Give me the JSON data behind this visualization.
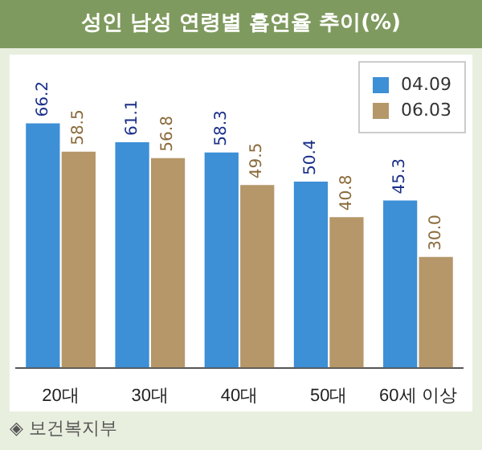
{
  "chart_data": {
    "type": "bar",
    "title": "성인 남성 연령별 흡연율 추이(%)",
    "categories": [
      "20대",
      "30대",
      "40대",
      "50대",
      "60세 이상"
    ],
    "series": [
      {
        "name": "04.09",
        "color": "#3d8fd6",
        "values": [
          66.2,
          61.1,
          58.3,
          50.4,
          45.3
        ],
        "value_labels": [
          "66.2",
          "61.1",
          "58.3",
          "50.4",
          "45.3"
        ]
      },
      {
        "name": "06.03",
        "color": "#b5976a",
        "values": [
          58.5,
          56.8,
          49.5,
          40.8,
          30.0
        ],
        "value_labels": [
          "58.5",
          "56.8",
          "49.5",
          "40.8",
          "30.0"
        ]
      }
    ],
    "tick_labels": "x",
    "legend": "top right",
    "annotations": [
      "◈ 보건복지부"
    ]
  }
}
